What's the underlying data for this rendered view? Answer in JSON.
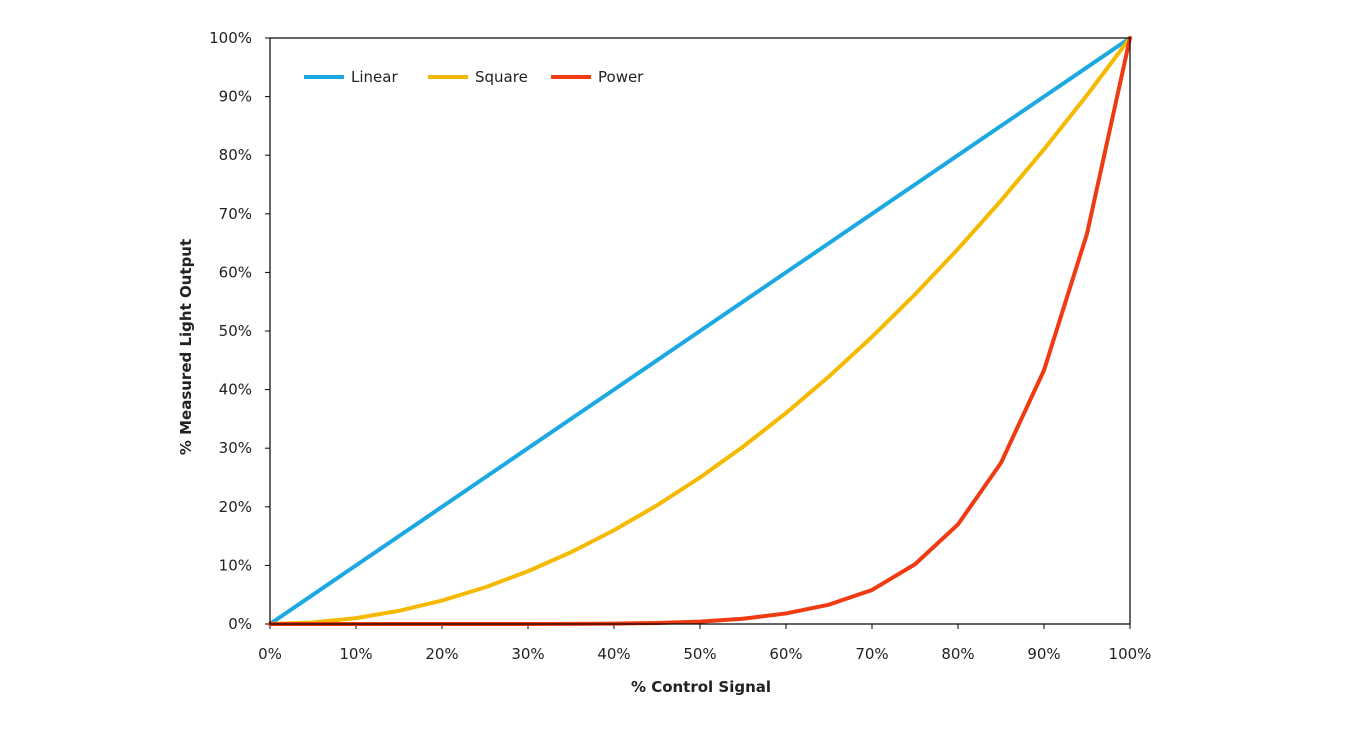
{
  "chart_data": {
    "type": "line",
    "xlabel": "% Control Signal",
    "ylabel": "% Measured Light Output",
    "xlim": [
      0,
      100
    ],
    "ylim": [
      0,
      100
    ],
    "x_ticks": [
      "0%",
      "10%",
      "20%",
      "30%",
      "40%",
      "50%",
      "60%",
      "70%",
      "80%",
      "90%",
      "100%"
    ],
    "y_ticks": [
      "0%",
      "10%",
      "20%",
      "30%",
      "40%",
      "50%",
      "60%",
      "70%",
      "80%",
      "90%",
      "100%"
    ],
    "grid": false,
    "legend_position": "top-left",
    "x": [
      0,
      5,
      10,
      15,
      20,
      25,
      30,
      35,
      40,
      45,
      50,
      55,
      60,
      65,
      70,
      75,
      80,
      85,
      90,
      95,
      100
    ],
    "series": [
      {
        "name": "Linear",
        "color": "#1CA9E1",
        "values": [
          0,
          5,
          10,
          15,
          20,
          25,
          30,
          35,
          40,
          45,
          50,
          55,
          60,
          65,
          70,
          75,
          80,
          85,
          90,
          95,
          100
        ]
      },
      {
        "name": "Square",
        "color": "#F5BA00",
        "values": [
          0,
          0.25,
          1,
          2.25,
          4,
          6.25,
          9,
          12.25,
          16,
          20.25,
          25,
          30.25,
          36,
          42.25,
          49,
          56.25,
          64,
          72.25,
          81,
          90.25,
          100
        ]
      },
      {
        "name": "Power",
        "color": "#F03A12",
        "values": [
          0,
          0,
          0,
          0,
          0,
          0,
          0.01,
          0.03,
          0.07,
          0.18,
          0.4,
          0.9,
          1.8,
          3.3,
          5.8,
          10.2,
          17,
          27.5,
          43.3,
          66.6,
          100
        ]
      }
    ]
  }
}
